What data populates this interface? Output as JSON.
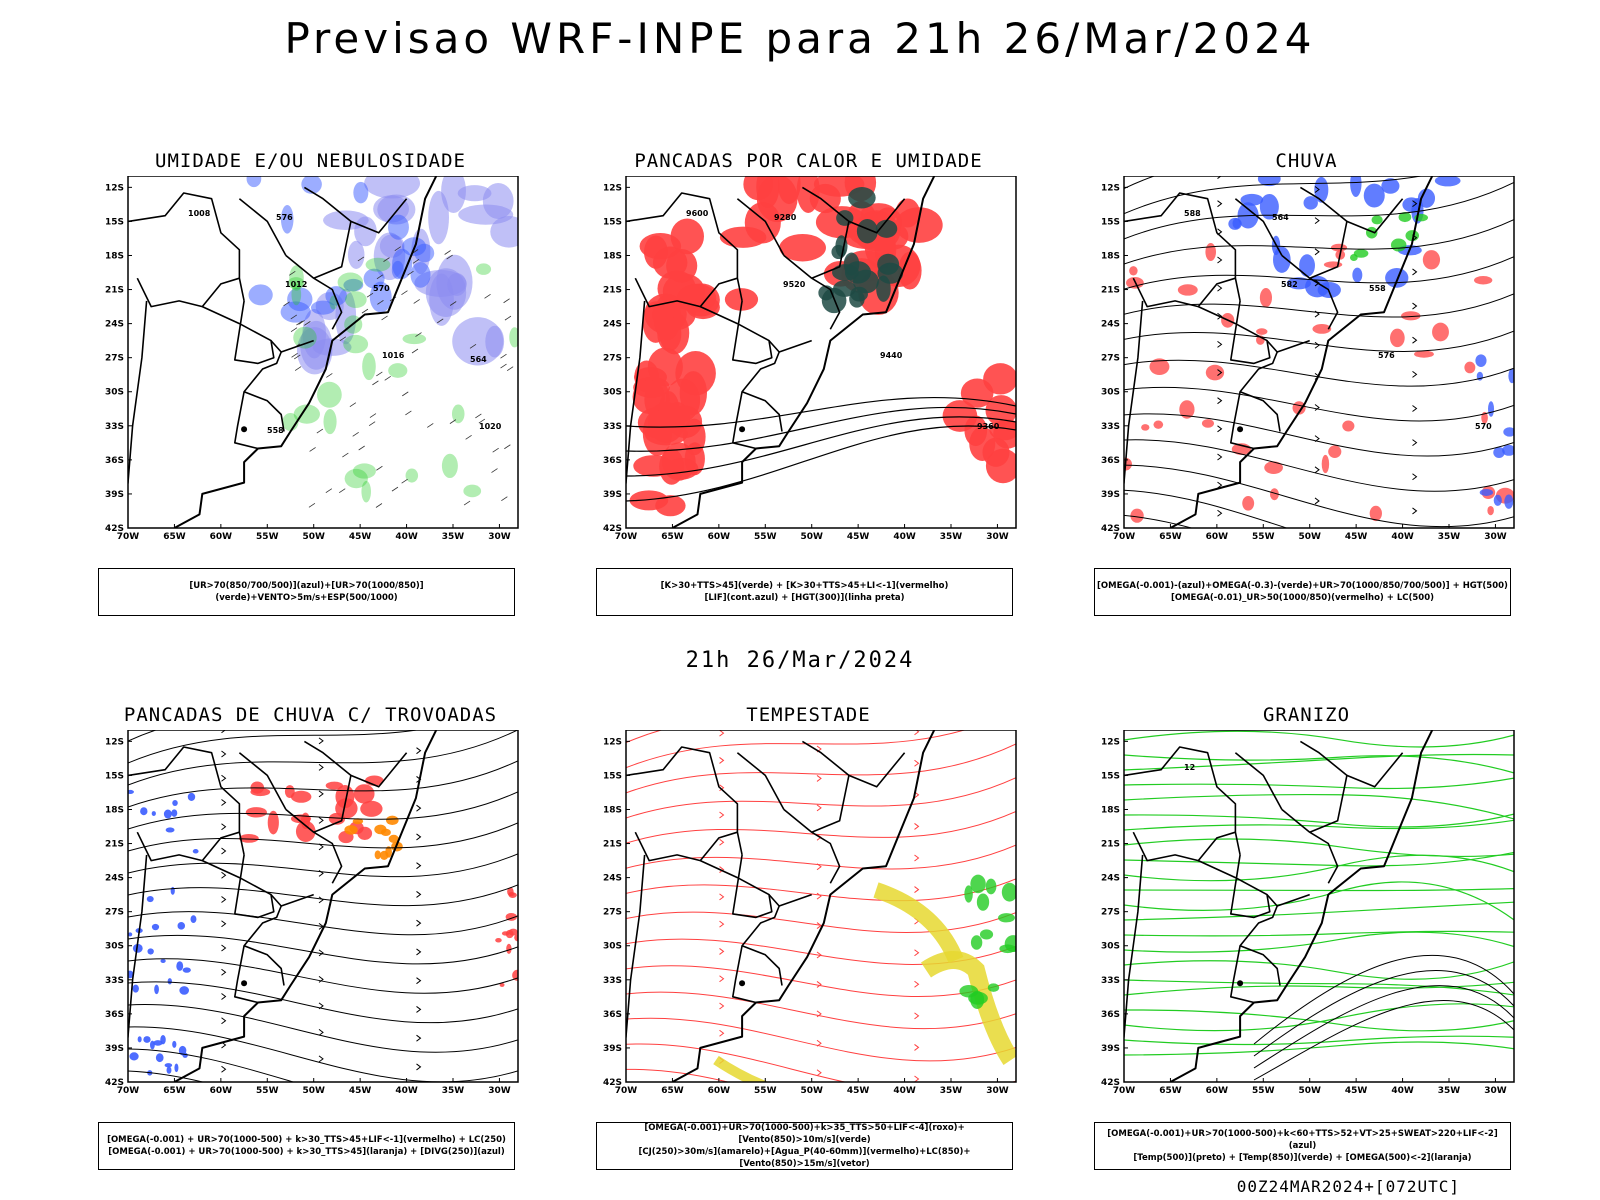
{
  "title": "Previsao WRF-INPE  para 21h 26/Mar/2024",
  "subtitle": "21h 26/Mar/2024",
  "footer": "00Z24MAR2024+[072UTC]",
  "lat_labels": [
    "12S",
    "15S",
    "18S",
    "21S",
    "24S",
    "27S",
    "30S",
    "33S",
    "36S",
    "39S",
    "42S"
  ],
  "lon_labels": [
    "70W",
    "65W",
    "60W",
    "55W",
    "50W",
    "45W",
    "40W",
    "35W",
    "30W"
  ],
  "colors": {
    "blue": "#3a5cff",
    "green": "#22cc22",
    "red": "#ff4040",
    "darkgreen": "#1f4a44",
    "orange": "#ff8800",
    "yellow": "#e6d830",
    "lavender": "#8c8cf0"
  },
  "panels": [
    {
      "title": "UMIDADE E/OU NEBULOSIDADE",
      "legend": [
        "[UR>70(850/700/500)](azul)+[UR>70(1000/850)](verde)+VENTO>5m/s+ESP(500/1000)"
      ],
      "contour_labels": [
        "1008",
        "1012",
        "1016",
        "1020",
        "576",
        "570",
        "564",
        "558"
      ]
    },
    {
      "title": "PANCADAS POR CALOR E UMIDADE",
      "legend": [
        "[K>30+TTS>45](verde) + [K>30+TTS>45+LI<-1](vermelho)",
        "[LIF](cont.azul) + [HGT(300)](linha preta)"
      ],
      "contour_labels": [
        "9600",
        "9520",
        "9440",
        "9360",
        "9280"
      ]
    },
    {
      "title": "CHUVA",
      "legend": [
        "[OMEGA(-0.001)-(azul)+OMEGA(-0.3)-(verde)+UR>70(1000/850/700/500)] + HGT(500)",
        "[OMEGA(-0.01)_UR>50(1000/850)(vermelho) + LC(500)"
      ],
      "contour_labels": [
        "588",
        "582",
        "576",
        "570",
        "564",
        "558"
      ]
    },
    {
      "title": "PANCADAS DE CHUVA C/ TROVOADAS",
      "legend": [
        "[OMEGA(-0.001) + UR>70(1000-500) + k>30_TTS>45+LIF<-1](vermelho) + LC(250)",
        "[OMEGA(-0.001) + UR>70(1000-500) + k>30_TTS>45](laranja) + [DIVG(250)](azul)"
      ],
      "contour_labels": []
    },
    {
      "title": "TEMPESTADE",
      "legend": [
        "[OMEGA(-0.001)+UR>70(1000-500)+k>35_TTS>50+LIF<-4](roxo)+[Vento(850)>10m/s](verde)",
        "[CJ(250)>30m/s](amarelo)+[Agua_P(40-60mm)](vermelho)+LC(850)+[Vento(850)>15m/s](vetor)"
      ],
      "contour_labels": []
    },
    {
      "title": "GRANIZO",
      "legend": [
        "[OMEGA(-0.001)+UR>70(1000-500)+k<60+TTS>52+VT>25+SWEAT>220+LIF<-2](azul)",
        "[Temp(500)](preto) + [Temp(850)](verde) + [OMEGA(500)<-2](laranja)"
      ],
      "contour_labels": [
        "12"
      ]
    }
  ]
}
